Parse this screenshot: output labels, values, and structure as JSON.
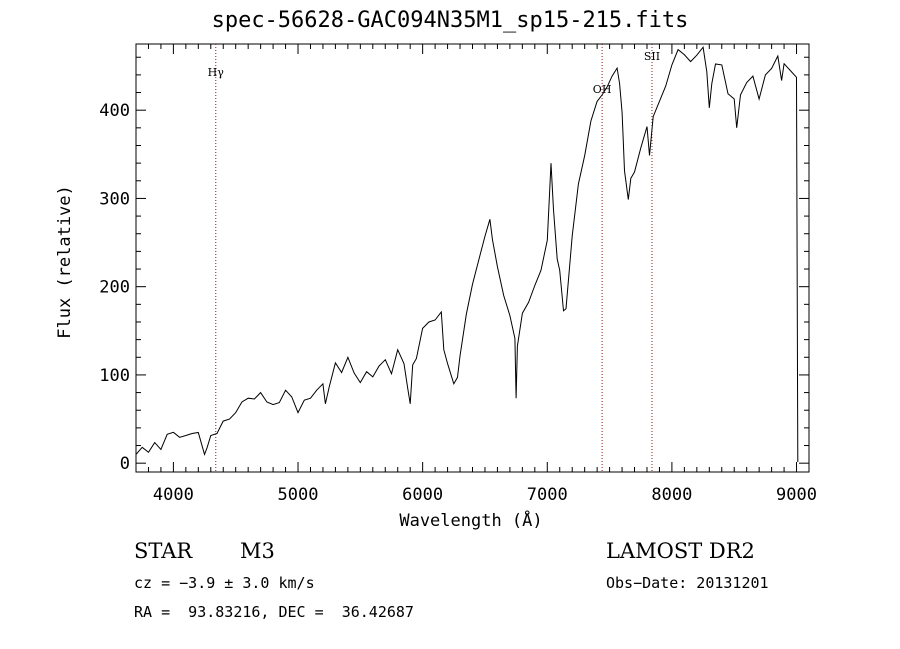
{
  "chart_data": {
    "type": "line",
    "title": "spec-56628-GAC094N35M1_sp15-215.fits",
    "xlabel": "Wavelength (Å)",
    "ylabel": "Flux (relative)",
    "xlim": [
      3700,
      9100
    ],
    "ylim": [
      -10,
      475
    ],
    "xticks": [
      4000,
      5000,
      6000,
      7000,
      8000,
      9000
    ],
    "yticks": [
      0,
      100,
      200,
      300,
      400
    ],
    "grid": false,
    "series": [
      {
        "name": "flux",
        "x": [
          3700,
          3750,
          3800,
          3850,
          3900,
          3950,
          4000,
          4050,
          4100,
          4150,
          4200,
          4250,
          4270,
          4300,
          4350,
          4400,
          4450,
          4500,
          4550,
          4600,
          4650,
          4700,
          4750,
          4800,
          4850,
          4900,
          4950,
          5000,
          5050,
          5100,
          5150,
          5200,
          5220,
          5250,
          5300,
          5350,
          5400,
          5450,
          5500,
          5550,
          5600,
          5650,
          5700,
          5750,
          5800,
          5850,
          5880,
          5900,
          5920,
          5950,
          6000,
          6050,
          6100,
          6150,
          6170,
          6200,
          6250,
          6280,
          6300,
          6350,
          6400,
          6450,
          6500,
          6540,
          6560,
          6600,
          6650,
          6700,
          6740,
          6750,
          6760,
          6800,
          6850,
          6900,
          6950,
          7000,
          7030,
          7050,
          7080,
          7100,
          7130,
          7150,
          7200,
          7250,
          7300,
          7350,
          7400,
          7440,
          7480,
          7520,
          7560,
          7580,
          7600,
          7620,
          7650,
          7670,
          7700,
          7750,
          7800,
          7820,
          7850,
          7900,
          7950,
          8000,
          8050,
          8100,
          8150,
          8200,
          8250,
          8280,
          8300,
          8320,
          8350,
          8400,
          8450,
          8500,
          8520,
          8550,
          8600,
          8650,
          8700,
          8750,
          8800,
          8850,
          8880,
          8900,
          8950,
          9000,
          9010
        ],
        "y": [
          10,
          18,
          15,
          22,
          17,
          30,
          35,
          32,
          30,
          35,
          32,
          10,
          20,
          30,
          35,
          45,
          50,
          60,
          68,
          75,
          70,
          80,
          72,
          65,
          70,
          80,
          75,
          60,
          70,
          75,
          80,
          90,
          70,
          85,
          115,
          100,
          120,
          105,
          90,
          105,
          95,
          110,
          120,
          100,
          130,
          110,
          85,
          70,
          110,
          120,
          150,
          160,
          165,
          170,
          130,
          110,
          90,
          100,
          120,
          170,
          200,
          230,
          260,
          275,
          255,
          220,
          190,
          170,
          140,
          75,
          130,
          170,
          185,
          200,
          220,
          250,
          340,
          290,
          230,
          220,
          170,
          175,
          260,
          315,
          350,
          385,
          410,
          420,
          425,
          440,
          445,
          430,
          400,
          330,
          300,
          320,
          330,
          360,
          380,
          350,
          390,
          410,
          430,
          450,
          470,
          460,
          455,
          465,
          470,
          445,
          400,
          430,
          455,
          450,
          420,
          410,
          380,
          420,
          430,
          440,
          410,
          440,
          450,
          460,
          435,
          450,
          445,
          440,
          0
        ]
      }
    ],
    "lines": [
      {
        "wavelength": 4340,
        "label": "Hγ"
      },
      {
        "wavelength": 7440,
        "label": "OH"
      },
      {
        "wavelength": 7840,
        "label": "SII"
      }
    ]
  },
  "info": {
    "class": "STAR",
    "subclass": "M3",
    "survey": "LAMOST DR2",
    "cz": "cz = −3.9 ± 3.0 km/s",
    "obs_date": "Obs−Date: 20131201",
    "coords": "RA =  93.83216, DEC =  36.42687"
  }
}
